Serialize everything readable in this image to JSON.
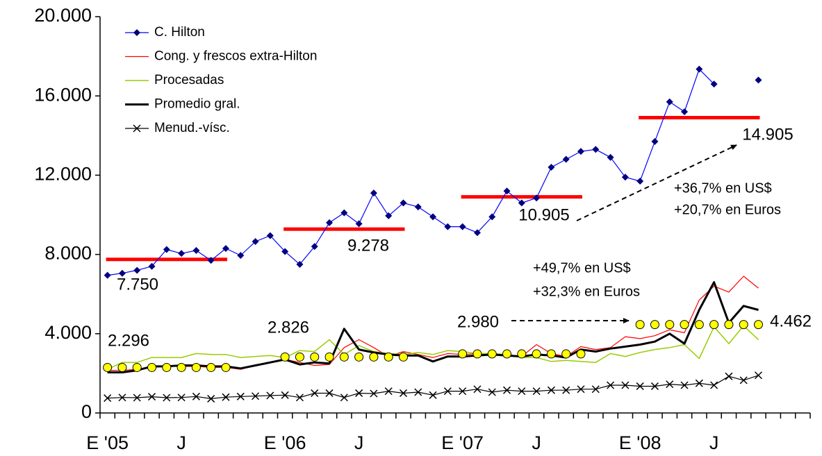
{
  "chart_data": {
    "type": "line",
    "categories": [
      "E '05",
      null,
      null,
      null,
      null,
      "J",
      null,
      null,
      null,
      null,
      null,
      null,
      "E '06",
      null,
      null,
      null,
      null,
      "J",
      null,
      null,
      null,
      null,
      null,
      null,
      "E '07",
      null,
      null,
      null,
      null,
      "J",
      null,
      null,
      null,
      null,
      null,
      null,
      "E '08",
      null,
      null,
      null,
      null,
      "J",
      null,
      null,
      null,
      null,
      null,
      null
    ],
    "ylim": [
      0,
      20000
    ],
    "yticks": [
      0,
      {
        "value": 4000,
        "label": "4.000"
      },
      {
        "value": 8000,
        "label": "8.000"
      },
      {
        "value": 12000,
        "label": "12.000"
      },
      {
        "value": 16000,
        "label": "16.000"
      },
      {
        "value": 20000,
        "label": "20.000"
      }
    ],
    "grid": false,
    "legend": "top-left",
    "series": [
      {
        "name": "C. Hilton",
        "color": "#0000ff",
        "marker": "diamond",
        "marker_color": "#000080",
        "line_width": 1.2,
        "values": [
          6950,
          7050,
          7200,
          7400,
          8250,
          8050,
          8200,
          7700,
          8300,
          7950,
          8650,
          8950,
          8150,
          7500,
          8400,
          9600,
          10100,
          9550,
          11100,
          9950,
          10600,
          10400,
          9900,
          9400,
          9400,
          9100,
          9900,
          11200,
          10600,
          10850,
          12400,
          12800,
          13200,
          13300,
          12900,
          11900,
          11700,
          13700,
          15700,
          15200,
          17350,
          16600,
          null,
          null,
          16800,
          null,
          null,
          null
        ]
      },
      {
        "name": "Cong. y frescos extra-Hilton",
        "color": "#ff0000",
        "line_width": 1.2,
        "values": [
          2150,
          2150,
          2200,
          2300,
          2350,
          2350,
          2350,
          2300,
          2300,
          2200,
          2400,
          2550,
          2700,
          2550,
          2400,
          2450,
          3300,
          3700,
          3300,
          2850,
          3100,
          2950,
          2800,
          3000,
          2950,
          3000,
          2950,
          2950,
          2850,
          3450,
          3000,
          2850,
          3350,
          3200,
          3300,
          3850,
          3750,
          3900,
          4200,
          4050,
          5700,
          6400,
          6100,
          6900,
          6300,
          null,
          null,
          null
        ]
      },
      {
        "name": "Procesadas",
        "color": "#99cc00",
        "line_width": 1.5,
        "values": [
          2200,
          2550,
          2550,
          2800,
          2800,
          2800,
          3000,
          2950,
          2950,
          2800,
          2850,
          2900,
          2800,
          3150,
          3100,
          3700,
          2950,
          3400,
          3100,
          3000,
          2950,
          3050,
          2950,
          3150,
          3100,
          3000,
          3000,
          2950,
          2800,
          2800,
          2600,
          2650,
          2600,
          2550,
          3000,
          2850,
          3050,
          3200,
          3300,
          3450,
          2750,
          4350,
          3500,
          4400,
          3700,
          null,
          null,
          null
        ]
      },
      {
        "name": "Promedio gral.",
        "color": "#000000",
        "line_width": 3,
        "values": [
          2050,
          2050,
          2150,
          2350,
          2350,
          2400,
          2400,
          2350,
          2350,
          2250,
          2400,
          2550,
          2700,
          2450,
          2550,
          2500,
          4250,
          3200,
          3050,
          2950,
          2900,
          2900,
          2600,
          2850,
          2850,
          2900,
          2950,
          2900,
          2850,
          2950,
          2900,
          2800,
          3200,
          3100,
          3250,
          3350,
          3450,
          3600,
          4000,
          3500,
          5200,
          6600,
          4550,
          5400,
          5200,
          null,
          null,
          null
        ]
      },
      {
        "name": "Menud.-vísc.",
        "color": "#000000",
        "marker": "x",
        "marker_color": "#000000",
        "line_width": 1.2,
        "values": [
          750,
          780,
          770,
          820,
          770,
          780,
          830,
          720,
          800,
          830,
          850,
          880,
          900,
          780,
          1000,
          1000,
          780,
          1000,
          980,
          1100,
          1000,
          1050,
          900,
          1100,
          1100,
          1200,
          1050,
          1150,
          1100,
          1100,
          1150,
          1150,
          1200,
          1200,
          1400,
          1400,
          1350,
          1350,
          1450,
          1400,
          1500,
          1400,
          1850,
          1650,
          1900,
          null,
          null,
          null
        ]
      }
    ],
    "period_averages": [
      {
        "value": 7750,
        "label": "7.750",
        "from": 0,
        "to": 8,
        "style": "bar",
        "color": "#ff0000"
      },
      {
        "value": 9278,
        "label": "9.278",
        "from": 12,
        "to": 20,
        "style": "bar",
        "color": "#ff0000"
      },
      {
        "value": 10905,
        "label": "10.905",
        "from": 24,
        "to": 32,
        "style": "bar",
        "color": "#ff0000"
      },
      {
        "value": 14905,
        "label": "14.905",
        "from": 36,
        "to": 44,
        "style": "bar",
        "color": "#ff0000"
      },
      {
        "value": 2296,
        "label": "2.296",
        "from": 0,
        "to": 8,
        "style": "dots",
        "color": "#ffff00"
      },
      {
        "value": 2826,
        "label": "2.826",
        "from": 12,
        "to": 20,
        "style": "dots",
        "color": "#ffff00"
      },
      {
        "value": 2980,
        "label": "2.980",
        "from": 24,
        "to": 32,
        "style": "dots",
        "color": "#ffff00"
      },
      {
        "value": 4462,
        "label": "4.462",
        "from": 36,
        "to": 44,
        "style": "dots",
        "color": "#ffff00"
      }
    ],
    "annotations": [
      {
        "lines": [
          "+36,7% en US$",
          "+20,7% en Euros"
        ]
      },
      {
        "lines": [
          "+49,7% en US$",
          "+32,3% en Euros"
        ]
      }
    ]
  }
}
